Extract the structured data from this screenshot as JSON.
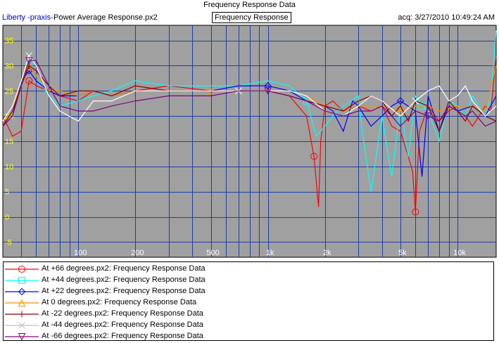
{
  "header": {
    "title": "Frequency Response Data",
    "app_name": "Liberty -praxis-",
    "file_name": "Power Average Response.px2",
    "plot_type": "Frequency Response",
    "acq_time": "acq: 3/27/2010 10:49:24 AM"
  },
  "colors": {
    "plot_background": "#a0a0a0",
    "grid": "#1c3fa8",
    "y_tick_labels": "#ffff00",
    "x_tick_labels": "#ffffff"
  },
  "chart_data": {
    "type": "line",
    "x_scale": "log",
    "xlim": [
      40,
      16000
    ],
    "ylim": [
      -8,
      38
    ],
    "y_ticks": [
      35,
      30,
      25,
      20,
      15,
      10,
      5,
      0,
      -5
    ],
    "y_tick_labels": [
      "35",
      "30",
      "25",
      "20",
      "15",
      "10",
      "5",
      "0",
      "-5"
    ],
    "x_ticks": [
      100,
      200,
      500,
      1000,
      2000,
      5000,
      10000
    ],
    "x_tick_labels": [
      "100",
      "200",
      "500",
      "1k",
      "2k",
      "5k",
      "10k"
    ],
    "grid": true,
    "legend_position": "bottom",
    "series": [
      {
        "name": "At +66 degrees.px2:  Frequency Response Data",
        "color": "#ff0000",
        "marker": "circle",
        "x": [
          40,
          45,
          50,
          55,
          60,
          70,
          80,
          100,
          120,
          150,
          200,
          300,
          500,
          700,
          1000,
          1300,
          1600,
          1750,
          1800,
          1850,
          1900,
          2000,
          2200,
          2500,
          3000,
          3500,
          4000,
          4500,
          5000,
          5500,
          5800,
          6000,
          6300,
          7000,
          8000,
          9000,
          10000,
          11000,
          12000,
          13000,
          14000,
          15000,
          16000
        ],
        "y": [
          20,
          16,
          17,
          27,
          26,
          25,
          24,
          23,
          25,
          24,
          25,
          26,
          25,
          25,
          25,
          24,
          20,
          12,
          7,
          2,
          15,
          22,
          23,
          21,
          22,
          21,
          22,
          18,
          17,
          12,
          9,
          1,
          17,
          22,
          19,
          21,
          22,
          20,
          18,
          20,
          22,
          21,
          32
        ]
      },
      {
        "name": "At +44 degrees.px2:  Frequency Response Data",
        "color": "#00ffff",
        "marker": "square",
        "x": [
          40,
          45,
          50,
          55,
          60,
          70,
          80,
          100,
          120,
          150,
          200,
          300,
          500,
          700,
          1000,
          1300,
          1600,
          1800,
          2000,
          2200,
          2500,
          3000,
          3200,
          3500,
          4000,
          4500,
          5000,
          5500,
          6000,
          6500,
          7000,
          8000,
          9000,
          10000,
          11000,
          12000,
          13000,
          14000,
          15000,
          16000
        ],
        "y": [
          19,
          22,
          26,
          30,
          28,
          24,
          22,
          23,
          24,
          25,
          27,
          26,
          26,
          26,
          27,
          26,
          23,
          16,
          18,
          20,
          22,
          24,
          15,
          5,
          20,
          8,
          22,
          12,
          24,
          22,
          21,
          15,
          23,
          22,
          20,
          24,
          22,
          20,
          24,
          37
        ]
      },
      {
        "name": "At +22 degrees.px2:  Frequency Response Data",
        "color": "#0000ff",
        "marker": "diamond",
        "x": [
          40,
          45,
          50,
          55,
          60,
          70,
          80,
          100,
          120,
          150,
          200,
          300,
          500,
          700,
          1000,
          1300,
          1600,
          2000,
          2200,
          2500,
          2800,
          3000,
          3500,
          4000,
          4500,
          5000,
          6000,
          6500,
          7000,
          8000,
          9000,
          10000,
          12000,
          14000,
          16000
        ],
        "y": [
          18,
          20,
          27,
          29,
          27,
          25,
          24,
          24,
          25,
          24,
          25,
          25,
          25,
          26,
          26,
          25,
          23,
          22,
          21,
          17,
          23,
          22,
          18,
          20,
          22,
          23,
          21,
          8,
          24,
          17,
          22,
          21,
          22,
          20,
          24
        ]
      },
      {
        "name": "At 0 degrees.px2:  Frequency Response Data",
        "color": "#ff8c00",
        "marker": "triangle",
        "x": [
          40,
          45,
          50,
          55,
          60,
          70,
          80,
          100,
          120,
          150,
          200,
          300,
          500,
          700,
          1000,
          1300,
          1600,
          2000,
          2500,
          3000,
          4000,
          5000,
          6000,
          7000,
          8000,
          10000,
          12000,
          14000,
          16000
        ],
        "y": [
          19,
          21,
          27,
          30,
          28,
          25,
          25,
          24,
          25,
          24,
          25,
          25,
          25,
          25,
          25,
          25,
          24,
          22,
          21,
          22,
          22,
          21,
          22,
          22,
          21,
          22,
          22,
          21,
          30
        ]
      },
      {
        "name": "At -22 degrees.px2:  Frequency Response Data",
        "color": "#8b0000",
        "marker": "plus",
        "x": [
          40,
          45,
          50,
          55,
          60,
          70,
          80,
          100,
          120,
          150,
          200,
          300,
          500,
          700,
          1000,
          1300,
          1600,
          2000,
          2500,
          3000,
          3500,
          4000,
          4500,
          5000,
          5500,
          6000,
          7000,
          8000,
          9000,
          10000,
          11000,
          12000,
          14000,
          16000
        ],
        "y": [
          18,
          21,
          26,
          30,
          29,
          26,
          24,
          25,
          25,
          24,
          26,
          25,
          25,
          25,
          25,
          24,
          23,
          22,
          21,
          23,
          24,
          23,
          20,
          22,
          19,
          23,
          22,
          17,
          23,
          21,
          19,
          22,
          20,
          19
        ]
      },
      {
        "name": "At -44 degrees.px2:  Frequency Response Data",
        "color": "#ffffff",
        "marker": "x",
        "x": [
          40,
          45,
          50,
          55,
          60,
          70,
          80,
          100,
          120,
          150,
          200,
          300,
          500,
          700,
          1000,
          1300,
          1600,
          2000,
          2500,
          3000,
          3500,
          4000,
          5000,
          6000,
          7000,
          8000,
          9000,
          10000,
          11000,
          12000,
          14000,
          16000
        ],
        "y": [
          19,
          22,
          27,
          32,
          30,
          24,
          21,
          19,
          23,
          23,
          25,
          25,
          25,
          25,
          25,
          25,
          24,
          21,
          20,
          22,
          24,
          23,
          20,
          23,
          25,
          26,
          23,
          24,
          26,
          23,
          20,
          22
        ]
      },
      {
        "name": "At -66 degrees.px2:  Frequency Response Data",
        "color": "#800080",
        "marker": "triangle-down",
        "x": [
          40,
          45,
          50,
          55,
          60,
          70,
          80,
          100,
          120,
          150,
          200,
          300,
          500,
          700,
          1000,
          1300,
          1600,
          2000,
          2500,
          3000,
          3500,
          4000,
          4500,
          5000,
          6000,
          7000,
          8000,
          9000,
          10000,
          11000,
          12000,
          14000,
          16000
        ],
        "y": [
          18,
          20,
          26,
          31,
          31,
          26,
          22,
          21,
          21,
          22,
          23,
          24,
          24,
          25,
          25,
          24,
          23,
          21,
          20,
          21,
          21,
          22,
          20,
          18,
          21,
          20,
          19,
          22,
          21,
          20,
          21,
          18,
          19
        ]
      }
    ]
  }
}
